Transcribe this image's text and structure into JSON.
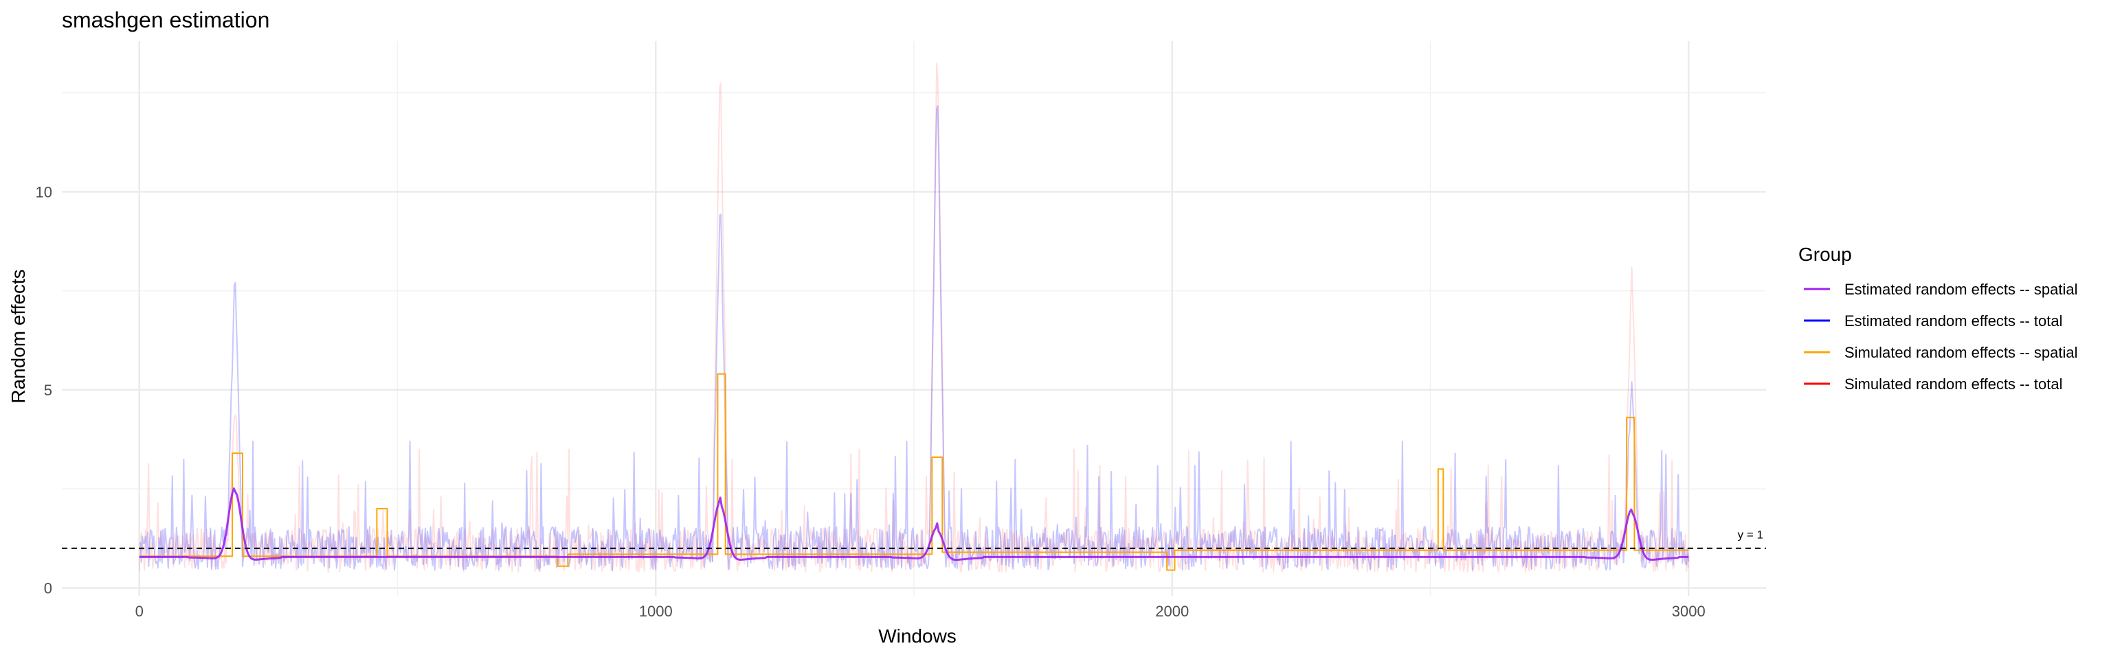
{
  "chart_data": {
    "type": "line",
    "title": "smashgen estimation",
    "xlabel": "Windows",
    "ylabel": "Random effects",
    "xlim": [
      -150,
      3150
    ],
    "ylim": [
      -0.2,
      13.8
    ],
    "x_ticks": [
      0,
      1000,
      2000,
      3000
    ],
    "y_ticks": [
      0,
      5,
      10
    ],
    "grid": true,
    "legend": {
      "title": "Group",
      "position": "right",
      "entries": [
        {
          "label": "Estimated random effects -- spatial",
          "color": "#a020f0"
        },
        {
          "label": "Estimated random effects -- total",
          "color": "#0000ff"
        },
        {
          "label": "Simulated random effects -- spatial",
          "color": "#ffa500"
        },
        {
          "label": "Simulated random effects -- total",
          "color": "#ff0000"
        }
      ]
    },
    "reference_line": {
      "y": 1,
      "label": "y = 1",
      "style": "dashed"
    },
    "series": [
      {
        "name": "Simulated random effects -- total",
        "color": "#ff0000",
        "opacity": 0.12,
        "baseline": 0.95,
        "noise_range": [
          0,
          3.5
        ],
        "peaks": [
          [
            185,
            4.5
          ],
          [
            1125,
            13.3
          ],
          [
            1545,
            13.5
          ],
          [
            2890,
            8.1
          ]
        ]
      },
      {
        "name": "Estimated random effects -- total",
        "color": "#0000ff",
        "opacity": 0.22,
        "baseline": 1.0,
        "noise_range": [
          0.3,
          3.7
        ],
        "peaks": [
          [
            185,
            7.9
          ],
          [
            1125,
            9.8
          ],
          [
            1545,
            12.9
          ],
          [
            2890,
            5.2
          ]
        ]
      },
      {
        "name": "Simulated random effects -- spatial",
        "color": "#ffa500",
        "opacity": 1,
        "segments": [
          {
            "x": [
              0,
              180
            ],
            "y": 0.8
          },
          {
            "x": [
              180,
              200
            ],
            "y": 3.4
          },
          {
            "x": [
              200,
              460
            ],
            "y": 0.8
          },
          {
            "x": [
              460,
              480
            ],
            "y": 2.0
          },
          {
            "x": [
              480,
              810
            ],
            "y": 0.8
          },
          {
            "x": [
              810,
              830
            ],
            "y": 0.55
          },
          {
            "x": [
              830,
              1120
            ],
            "y": 0.85
          },
          {
            "x": [
              1120,
              1135
            ],
            "y": 5.4
          },
          {
            "x": [
              1135,
              1535
            ],
            "y": 0.85
          },
          {
            "x": [
              1535,
              1555
            ],
            "y": 3.3
          },
          {
            "x": [
              1555,
              1990
            ],
            "y": 0.9
          },
          {
            "x": [
              1990,
              2005
            ],
            "y": 0.45
          },
          {
            "x": [
              2005,
              2515
            ],
            "y": 0.95
          },
          {
            "x": [
              2515,
              2525
            ],
            "y": 3.0
          },
          {
            "x": [
              2525,
              2880
            ],
            "y": 0.95
          },
          {
            "x": [
              2880,
              2895
            ],
            "y": 4.3
          },
          {
            "x": [
              2895,
              3000
            ],
            "y": 0.95
          }
        ]
      },
      {
        "name": "Estimated random effects -- spatial",
        "color": "#a020f0",
        "opacity": 0.9,
        "baseline": 0.78,
        "bumps": [
          [
            185,
            1.85
          ],
          [
            1125,
            1.5
          ],
          [
            1545,
            0.85
          ],
          [
            2890,
            1.3
          ]
        ]
      }
    ]
  }
}
